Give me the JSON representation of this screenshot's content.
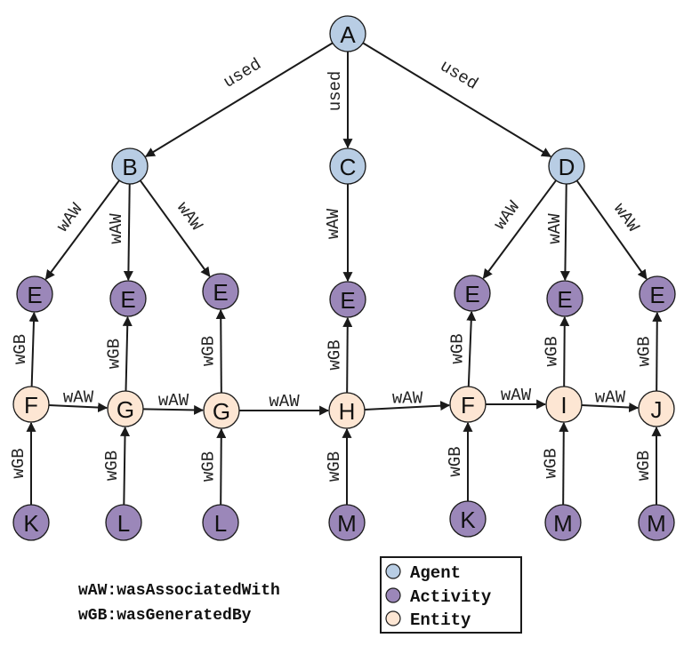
{
  "colors": {
    "agent": "#b8cde4",
    "activity": "#9b87b9",
    "entity": "#fde6d3",
    "stroke": "#1a1a1a"
  },
  "nodes": [
    {
      "id": "A",
      "label": "A",
      "kind": "agent"
    },
    {
      "id": "B",
      "label": "B",
      "kind": "agent"
    },
    {
      "id": "C",
      "label": "C",
      "kind": "agent"
    },
    {
      "id": "D",
      "label": "D",
      "kind": "agent"
    },
    {
      "id": "E1",
      "label": "E",
      "kind": "activity"
    },
    {
      "id": "E2",
      "label": "E",
      "kind": "activity"
    },
    {
      "id": "E3",
      "label": "E",
      "kind": "activity"
    },
    {
      "id": "E4",
      "label": "E",
      "kind": "activity"
    },
    {
      "id": "E5",
      "label": "E",
      "kind": "activity"
    },
    {
      "id": "E6",
      "label": "E",
      "kind": "activity"
    },
    {
      "id": "E7",
      "label": "E",
      "kind": "activity"
    },
    {
      "id": "F1",
      "label": "F",
      "kind": "entity"
    },
    {
      "id": "G1",
      "label": "G",
      "kind": "entity"
    },
    {
      "id": "G2",
      "label": "G",
      "kind": "entity"
    },
    {
      "id": "H",
      "label": "H",
      "kind": "entity"
    },
    {
      "id": "F2",
      "label": "F",
      "kind": "entity"
    },
    {
      "id": "I",
      "label": "I",
      "kind": "entity"
    },
    {
      "id": "J",
      "label": "J",
      "kind": "entity"
    },
    {
      "id": "K1",
      "label": "K",
      "kind": "activity"
    },
    {
      "id": "L1",
      "label": "L",
      "kind": "activity"
    },
    {
      "id": "L2",
      "label": "L",
      "kind": "activity"
    },
    {
      "id": "M1",
      "label": "M",
      "kind": "activity"
    },
    {
      "id": "K2",
      "label": "K",
      "kind": "activity"
    },
    {
      "id": "M2",
      "label": "M",
      "kind": "activity"
    },
    {
      "id": "M3",
      "label": "M",
      "kind": "activity"
    }
  ],
  "edges": [
    {
      "from": "A",
      "to": "B",
      "label": "used"
    },
    {
      "from": "A",
      "to": "C",
      "label": "used"
    },
    {
      "from": "A",
      "to": "D",
      "label": "used"
    },
    {
      "from": "B",
      "to": "E1",
      "label": "wAW"
    },
    {
      "from": "B",
      "to": "E2",
      "label": "wAW"
    },
    {
      "from": "B",
      "to": "E3",
      "label": "wAW"
    },
    {
      "from": "C",
      "to": "E4",
      "label": "wAW"
    },
    {
      "from": "D",
      "to": "E5",
      "label": "wAW"
    },
    {
      "from": "D",
      "to": "E6",
      "label": "wAW"
    },
    {
      "from": "D",
      "to": "E7",
      "label": "wAW"
    },
    {
      "from": "F1",
      "to": "E1",
      "label": "wGB"
    },
    {
      "from": "G1",
      "to": "E2",
      "label": "wGB"
    },
    {
      "from": "G2",
      "to": "E3",
      "label": "wGB"
    },
    {
      "from": "H",
      "to": "E4",
      "label": "wGB"
    },
    {
      "from": "F2",
      "to": "E5",
      "label": "wGB"
    },
    {
      "from": "I",
      "to": "E6",
      "label": "wGB"
    },
    {
      "from": "J",
      "to": "E7",
      "label": "wGB"
    },
    {
      "from": "F1",
      "to": "G1",
      "label": "wAW"
    },
    {
      "from": "G1",
      "to": "G2",
      "label": "wAW"
    },
    {
      "from": "G2",
      "to": "H",
      "label": "wAW"
    },
    {
      "from": "H",
      "to": "F2",
      "label": "wAW"
    },
    {
      "from": "F2",
      "to": "I",
      "label": "wAW"
    },
    {
      "from": "I",
      "to": "J",
      "label": "wAW"
    },
    {
      "from": "K1",
      "to": "F1",
      "label": "wGB"
    },
    {
      "from": "L1",
      "to": "G1",
      "label": "wGB"
    },
    {
      "from": "L2",
      "to": "G2",
      "label": "wGB"
    },
    {
      "from": "M1",
      "to": "H",
      "label": "wGB"
    },
    {
      "from": "K2",
      "to": "F2",
      "label": "wGB"
    },
    {
      "from": "M2",
      "to": "I",
      "label": "wGB"
    },
    {
      "from": "M3",
      "to": "J",
      "label": "wGB"
    }
  ],
  "abbreviations": [
    "wAW:wasAssociatedWith",
    "wGB:wasGeneratedBy"
  ],
  "legend": [
    {
      "label": "Agent",
      "kind": "agent"
    },
    {
      "label": "Activity",
      "kind": "activity"
    },
    {
      "label": "Entity",
      "kind": "entity"
    }
  ]
}
